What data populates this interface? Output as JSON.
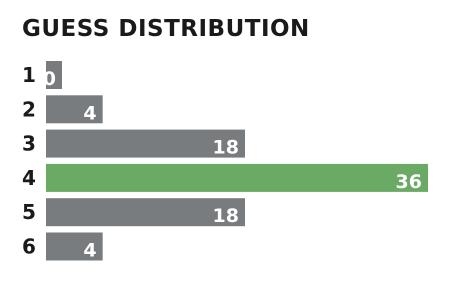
{
  "chart_data": {
    "type": "bar",
    "orientation": "horizontal",
    "title": "GUESS DISTRIBUTION",
    "categories": [
      "1",
      "2",
      "3",
      "4",
      "5",
      "6"
    ],
    "values": [
      0,
      4,
      18,
      36,
      18,
      4
    ],
    "colors": [
      "#787c7e",
      "#787c7e",
      "#787c7e",
      "#6aaa64",
      "#787c7e",
      "#787c7e"
    ]
  }
}
